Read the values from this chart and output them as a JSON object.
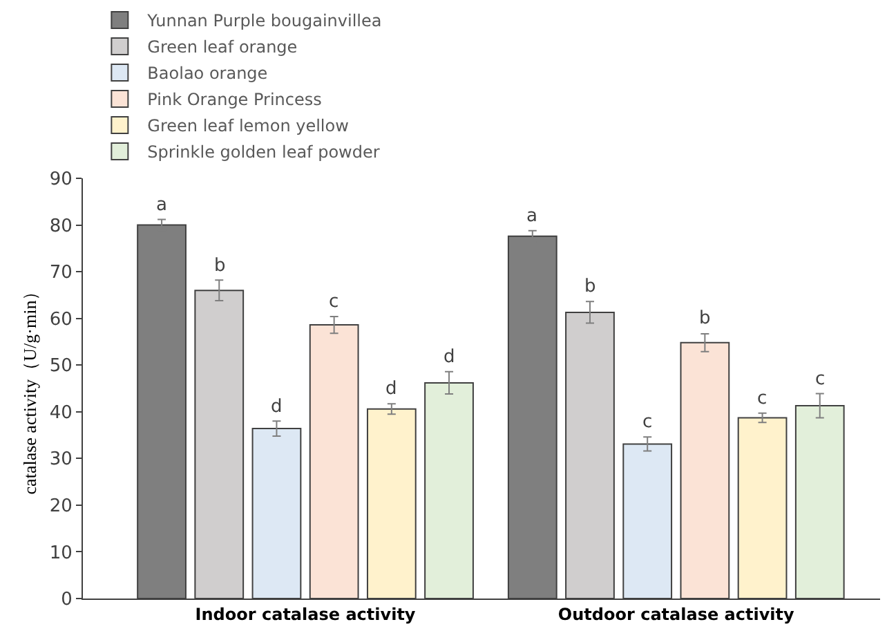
{
  "chart_data": {
    "type": "bar",
    "ylabel": "catalase activity（U/g·min）",
    "categories": [
      "Indoor catalase activity",
      "Outdoor catalase activity"
    ],
    "series": [
      {
        "name": "Yunnan Purple bougainvillea",
        "color": "#7f7f7f",
        "values": [
          80.0,
          77.6
        ],
        "errors": [
          1.2,
          1.2
        ],
        "value_labels": [
          "a",
          "a"
        ]
      },
      {
        "name": "Green leaf orange",
        "color": "#d0cece",
        "values": [
          66.0,
          61.3
        ],
        "errors": [
          2.2,
          2.3
        ],
        "value_labels": [
          "b",
          "b"
        ]
      },
      {
        "name": "Baolao orange",
        "color": "#dde8f4",
        "values": [
          36.4,
          33.1
        ],
        "errors": [
          1.6,
          1.5
        ],
        "value_labels": [
          "d",
          "c"
        ]
      },
      {
        "name": "Pink Orange Princess",
        "color": "#fbe3d6",
        "values": [
          58.6,
          54.8
        ],
        "errors": [
          1.8,
          1.9
        ],
        "value_labels": [
          "c",
          "b"
        ]
      },
      {
        "name": "Green leaf lemon yellow",
        "color": "#fff2cc",
        "values": [
          40.6,
          38.7
        ],
        "errors": [
          1.1,
          1.0
        ],
        "value_labels": [
          "d",
          "c"
        ]
      },
      {
        "name": "Sprinkle golden leaf powder",
        "color": "#e2efda",
        "values": [
          46.2,
          41.3
        ],
        "errors": [
          2.4,
          2.6
        ],
        "value_labels": [
          "d",
          "c"
        ]
      }
    ],
    "ylim": [
      0,
      90
    ],
    "yticks": [
      0,
      10,
      20,
      30,
      40,
      50,
      60,
      70,
      80,
      90
    ],
    "legend": "top"
  }
}
